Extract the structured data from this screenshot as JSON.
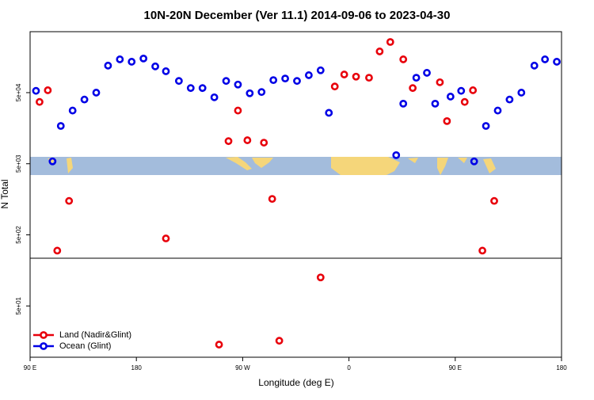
{
  "chart_data": {
    "type": "scatter",
    "title": "10N-20N December (Ver 11.1)   2014-09-06 to 2023-04-30",
    "xlabel": "Longitude (deg E)",
    "ylabel": "N Total",
    "xlim": [
      90,
      540
    ],
    "ylim": [
      9.5,
      360000
    ],
    "ylog": true,
    "legend": "lower left",
    "xticks": [
      {
        "value": 90,
        "label": "90 E"
      },
      {
        "value": 180,
        "label": "180"
      },
      {
        "value": 270,
        "label": "90 W"
      },
      {
        "value": 360,
        "label": "0"
      },
      {
        "value": 450,
        "label": "90 E"
      },
      {
        "value": 540,
        "label": "180"
      }
    ],
    "yticks": [
      {
        "value": 50,
        "label": "5e+01"
      },
      {
        "value": 500,
        "label": "5e+02"
      },
      {
        "value": 5000,
        "label": "5e+03"
      },
      {
        "value": 50000,
        "label": "5e+04"
      }
    ],
    "series": [
      {
        "name": "Land (Nadir&Glint)",
        "color": "#e8000b",
        "x": [
          98,
          105,
          113,
          123,
          205,
          250,
          258,
          266,
          274,
          288,
          295,
          301,
          336,
          348,
          356,
          366,
          377,
          386,
          395,
          406,
          414,
          437,
          443,
          458,
          465,
          473,
          483
        ],
        "values": [
          37000,
          54000,
          300,
          1500,
          445,
          14.3,
          10400,
          28000,
          10700,
          9900,
          1600,
          16.2,
          126,
          61000,
          90000,
          84000,
          81000,
          190000,
          258000,
          147000,
          58000,
          70000,
          19900,
          37000,
          54000,
          300,
          1500
        ]
      },
      {
        "name": "Ocean (Glint)",
        "color": "#0000e6",
        "x": [
          95,
          109,
          116,
          126,
          136,
          146,
          156,
          166,
          176,
          186,
          196,
          205,
          216,
          226,
          236,
          246,
          256,
          266,
          276,
          286,
          296,
          306,
          316,
          326,
          336,
          343,
          400,
          406,
          417,
          426,
          433,
          446,
          455,
          466,
          476,
          486,
          496,
          506,
          517,
          526,
          536
        ],
        "values": [
          53000,
          5400,
          17000,
          28000,
          40000,
          50000,
          120000,
          147000,
          136000,
          151000,
          117000,
          100000,
          73000,
          58000,
          58000,
          43000,
          73000,
          65000,
          49000,
          51000,
          75000,
          79000,
          73000,
          88000,
          103000,
          26000,
          6600,
          35000,
          81000,
          95000,
          35000,
          44000,
          53000,
          5400,
          17000,
          28000,
          40000,
          50000,
          120000,
          147000,
          136000
        ]
      }
    ]
  }
}
